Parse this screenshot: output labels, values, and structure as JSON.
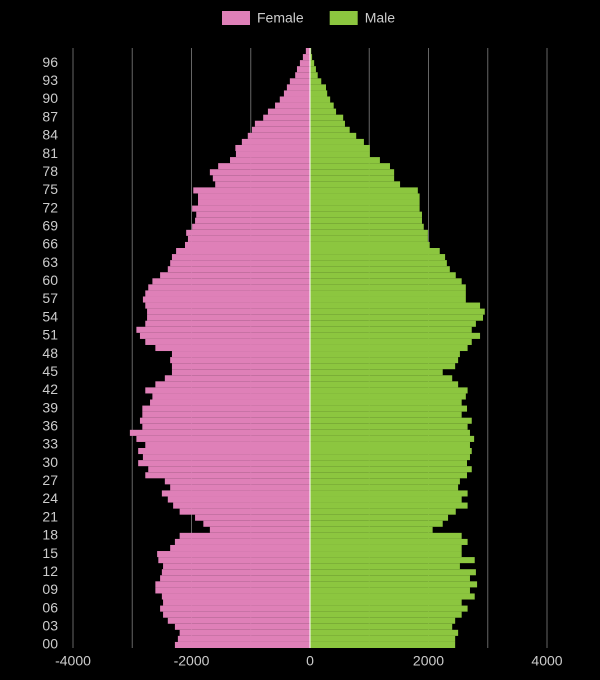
{
  "chart_data": {
    "type": "bar",
    "orientation": "horizontal",
    "legend": "top",
    "categories": [
      "00",
      null,
      null,
      "03",
      null,
      null,
      "06",
      null,
      null,
      "09",
      null,
      null,
      "12",
      null,
      null,
      "15",
      null,
      null,
      "18",
      null,
      null,
      "21",
      null,
      null,
      "24",
      null,
      null,
      "27",
      null,
      null,
      "30",
      null,
      null,
      "33",
      null,
      null,
      "36",
      null,
      null,
      "39",
      null,
      null,
      "42",
      null,
      null,
      "45",
      null,
      null,
      "48",
      null,
      null,
      "51",
      null,
      null,
      "54",
      null,
      null,
      "57",
      null,
      null,
      "60",
      null,
      null,
      "63",
      null,
      null,
      "66",
      null,
      null,
      "69",
      null,
      null,
      "72",
      null,
      null,
      "75",
      null,
      null,
      "78",
      null,
      null,
      "81",
      null,
      null,
      "84",
      null,
      null,
      "87",
      null,
      null,
      "90",
      null,
      null,
      "93",
      null,
      null,
      "96",
      null,
      null
    ],
    "series": [
      {
        "name": "Female",
        "color": "#df80b8",
        "values": [
          -2280,
          -2230,
          -2200,
          -2280,
          -2400,
          -2480,
          -2530,
          -2480,
          -2500,
          -2610,
          -2610,
          -2530,
          -2500,
          -2480,
          -2560,
          -2580,
          -2360,
          -2280,
          -2200,
          -1690,
          -1800,
          -1940,
          -2200,
          -2310,
          -2400,
          -2500,
          -2360,
          -2450,
          -2780,
          -2730,
          -2900,
          -2820,
          -2900,
          -2780,
          -2930,
          -3040,
          -2830,
          -2870,
          -2830,
          -2830,
          -2700,
          -2660,
          -2780,
          -2610,
          -2450,
          -2330,
          -2330,
          -2360,
          -2330,
          -2610,
          -2780,
          -2870,
          -2930,
          -2780,
          -2750,
          -2750,
          -2780,
          -2820,
          -2780,
          -2730,
          -2660,
          -2530,
          -2400,
          -2360,
          -2330,
          -2260,
          -2110,
          -2060,
          -2090,
          -1990,
          -1940,
          -1920,
          -1990,
          -1890,
          -1890,
          -1970,
          -1600,
          -1640,
          -1690,
          -1550,
          -1350,
          -1250,
          -1260,
          -1150,
          -1050,
          -980,
          -930,
          -790,
          -710,
          -590,
          -510,
          -440,
          -390,
          -340,
          -250,
          -220,
          -170,
          -120,
          -70
        ]
      },
      {
        "name": "Male",
        "color": "#8cc63f",
        "values": [
          2450,
          2450,
          2500,
          2400,
          2450,
          2560,
          2660,
          2560,
          2780,
          2700,
          2820,
          2700,
          2800,
          2530,
          2780,
          2560,
          2560,
          2660,
          2560,
          2070,
          2240,
          2330,
          2460,
          2660,
          2560,
          2660,
          2500,
          2530,
          2650,
          2730,
          2650,
          2700,
          2730,
          2700,
          2770,
          2700,
          2660,
          2730,
          2560,
          2650,
          2560,
          2630,
          2660,
          2500,
          2400,
          2240,
          2450,
          2500,
          2530,
          2660,
          2730,
          2870,
          2730,
          2800,
          2920,
          2950,
          2870,
          2630,
          2630,
          2630,
          2560,
          2460,
          2360,
          2310,
          2280,
          2190,
          2020,
          1990,
          1990,
          1920,
          1890,
          1890,
          1850,
          1850,
          1850,
          1820,
          1520,
          1420,
          1420,
          1350,
          1180,
          1010,
          1010,
          910,
          780,
          670,
          590,
          560,
          440,
          400,
          340,
          290,
          270,
          190,
          130,
          100,
          70,
          35,
          20
        ]
      }
    ],
    "xlim": [
      -4000,
      4000
    ],
    "xticks": [
      -4000,
      -2000,
      0,
      2000,
      4000
    ],
    "xgrid_minor": [
      -3000,
      -1000,
      1000,
      3000
    ],
    "grid": true
  }
}
